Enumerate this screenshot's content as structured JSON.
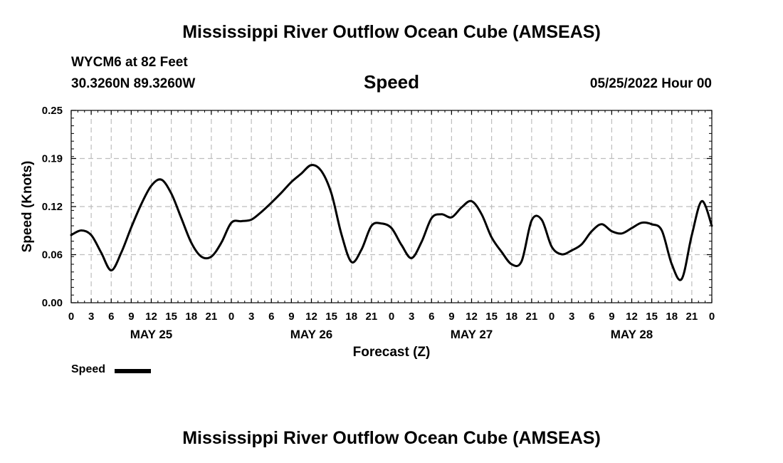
{
  "header": {
    "title": "Mississippi River Outflow Ocean Cube (AMSEAS)",
    "station": "WYCM6 at 82 Feet",
    "coords": "30.3260N  89.3260W",
    "datetime": "05/25/2022 Hour 00"
  },
  "footer": {
    "title": "Mississippi River Outflow Ocean Cube (AMSEAS)"
  },
  "chart_data": {
    "type": "line",
    "title": "Speed",
    "xlabel": "Forecast (Z)",
    "ylabel": "Speed (Knots)",
    "ylim": [
      0,
      0.25
    ],
    "xlim": [
      0,
      96
    ],
    "yticks": [
      "0.00",
      "0.06",
      "0.12",
      "0.19",
      "0.25"
    ],
    "ytick_values": [
      0,
      0.0625,
      0.125,
      0.1875,
      0.25
    ],
    "xtick_labels": [
      "0",
      "3",
      "6",
      "9",
      "12",
      "15",
      "18",
      "21",
      "0",
      "3",
      "6",
      "9",
      "12",
      "15",
      "18",
      "21",
      "0",
      "3",
      "6",
      "9",
      "12",
      "15",
      "18",
      "21",
      "0",
      "3",
      "6",
      "9",
      "12",
      "15",
      "18",
      "21",
      "0"
    ],
    "day_labels": [
      "MAY 25",
      "MAY 26",
      "MAY 27",
      "MAY 28"
    ],
    "day_label_hours": [
      12,
      36,
      60,
      84
    ],
    "grid": true,
    "legend": {
      "position": "bottom-left",
      "entries": [
        "Speed"
      ]
    },
    "series": [
      {
        "name": "Speed",
        "color": "#000000",
        "x": [
          0,
          1.5,
          3,
          4.5,
          6,
          7.5,
          9,
          10.5,
          12,
          13.5,
          15,
          16.5,
          18,
          19.5,
          21,
          22.5,
          24,
          25.5,
          27,
          28.5,
          30,
          31.5,
          33,
          34.5,
          36,
          37.5,
          39,
          40.5,
          42,
          43.5,
          45,
          46.5,
          48,
          49.5,
          51,
          52.5,
          54,
          55.5,
          57,
          58.5,
          60,
          61.5,
          63,
          64.5,
          66,
          67.5,
          69,
          70.5,
          72,
          73.5,
          75,
          76.5,
          78,
          79.5,
          81,
          82.5,
          84,
          85.5,
          87,
          88.5,
          90,
          91.5,
          93,
          94.5,
          96
        ],
        "values": [
          0.088,
          0.094,
          0.088,
          0.065,
          0.042,
          0.065,
          0.098,
          0.128,
          0.152,
          0.16,
          0.142,
          0.11,
          0.078,
          0.06,
          0.06,
          0.078,
          0.104,
          0.106,
          0.108,
          0.118,
          0.13,
          0.143,
          0.157,
          0.168,
          0.179,
          0.171,
          0.142,
          0.089,
          0.053,
          0.069,
          0.1,
          0.103,
          0.097,
          0.075,
          0.058,
          0.079,
          0.11,
          0.115,
          0.111,
          0.124,
          0.132,
          0.115,
          0.085,
          0.066,
          0.05,
          0.054,
          0.107,
          0.108,
          0.073,
          0.063,
          0.068,
          0.076,
          0.093,
          0.102,
          0.093,
          0.09,
          0.097,
          0.104,
          0.102,
          0.094,
          0.05,
          0.031,
          0.088,
          0.132,
          0.1
        ]
      }
    ]
  }
}
